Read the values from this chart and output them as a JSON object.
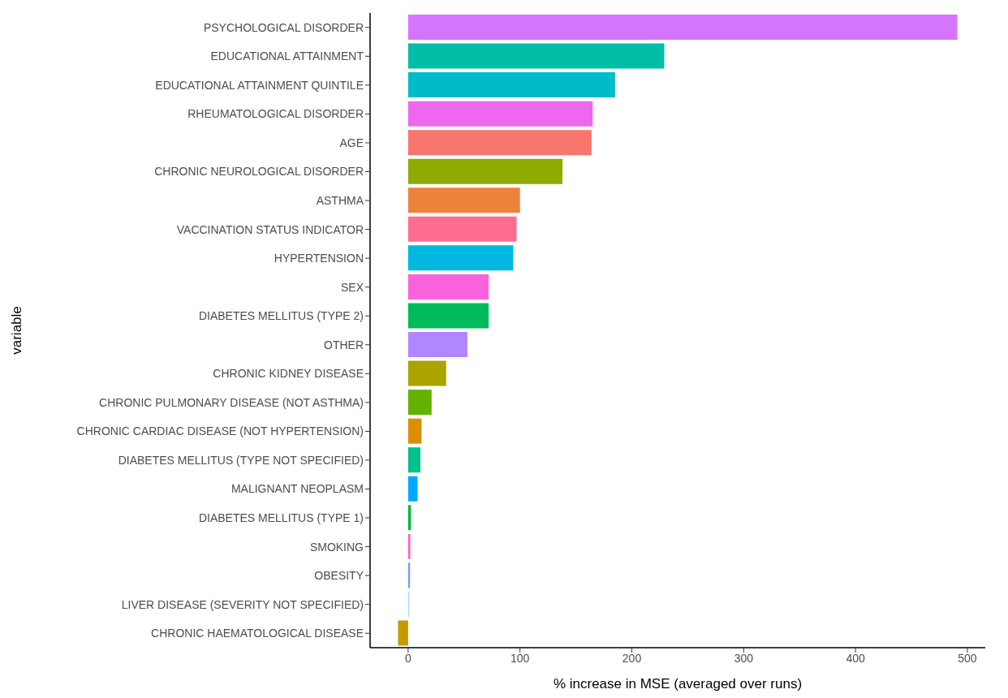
{
  "chart_data": {
    "type": "bar",
    "orientation": "horizontal",
    "xlabel": "% increase in MSE (averaged over runs)",
    "ylabel": "variable",
    "categories": [
      "PSYCHOLOGICAL DISORDER",
      "EDUCATIONAL ATTAINMENT",
      "EDUCATIONAL ATTAINMENT QUINTILE",
      "RHEUMATOLOGICAL DISORDER",
      "AGE",
      "CHRONIC NEUROLOGICAL DISORDER",
      "ASTHMA",
      "VACCINATION STATUS INDICATOR",
      "HYPERTENSION",
      "SEX",
      "DIABETES MELLITUS (TYPE 2)",
      "OTHER",
      "CHRONIC KIDNEY DISEASE",
      "CHRONIC PULMONARY DISEASE (NOT ASTHMA)",
      "CHRONIC CARDIAC DISEASE (NOT HYPERTENSION)",
      "DIABETES MELLITUS (TYPE NOT SPECIFIED)",
      "MALIGNANT NEOPLASM",
      "DIABETES MELLITUS (TYPE 1)",
      "SMOKING",
      "OBESITY",
      "LIVER DISEASE (SEVERITY NOT SPECIFIED)",
      "CHRONIC HAEMATOLOGICAL DISEASE"
    ],
    "values": [
      491,
      229,
      185,
      165,
      164,
      138,
      100,
      97,
      94,
      72,
      72,
      53,
      34,
      21,
      12,
      11,
      8.5,
      2.5,
      2,
      1.7,
      1,
      -9
    ],
    "colors": [
      "#d575fe",
      "#00bfa6",
      "#00bcc8",
      "#ed68ed",
      "#f8766d",
      "#8fab00",
      "#ec823c",
      "#ff6c91",
      "#00b8e0",
      "#fa62db",
      "#00bb5b",
      "#b186ff",
      "#aba300",
      "#64b200",
      "#db8e00",
      "#00c08b",
      "#00a9ff",
      "#00ba38",
      "#ff61c3",
      "#7997ff",
      "#9fdcf5",
      "#c49a00"
    ],
    "xlim": [
      -34,
      516
    ],
    "xticks": [
      0,
      100,
      200,
      300,
      400,
      500
    ],
    "grid": false,
    "legend": false
  }
}
